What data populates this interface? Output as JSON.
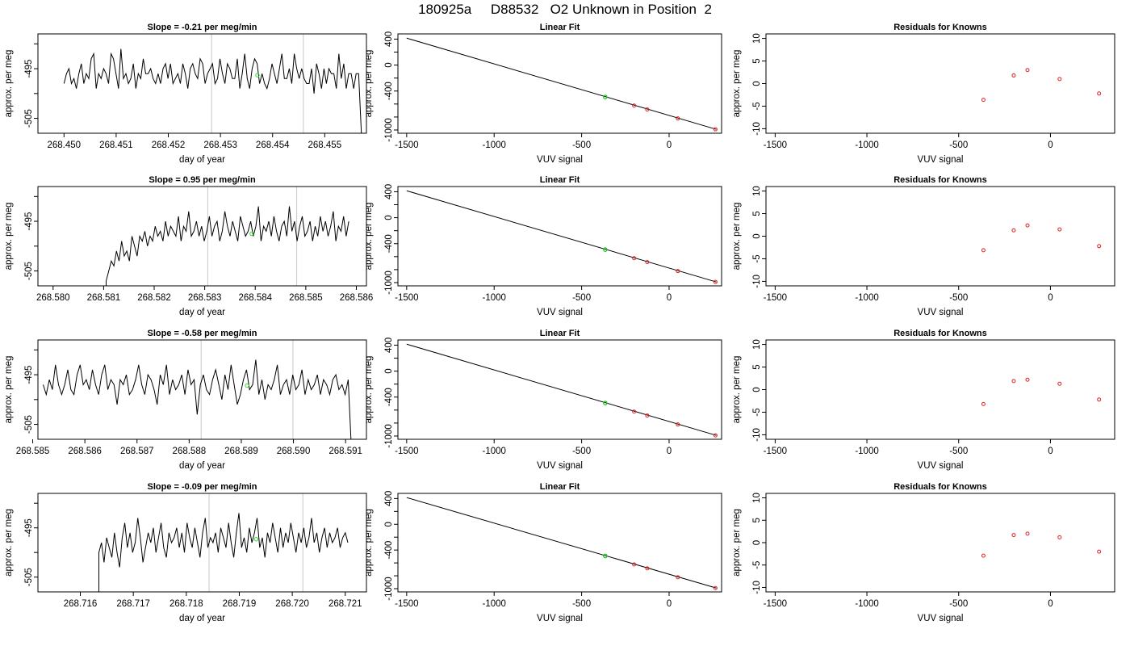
{
  "figure": {
    "title": "180925a     D88532   O2 Unknown in Position  2"
  },
  "chart_data": [
    {
      "panel": "timeseries",
      "row": 1,
      "type": "line",
      "title": "Slope =  -0.21  per meg/min",
      "xlabel": "day of year",
      "ylabel": "approx. per meg",
      "xlim": [
        268.4495,
        268.4558
      ],
      "ylim": [
        -508,
        -488
      ],
      "xticks": [
        268.45,
        268.451,
        268.452,
        268.453,
        268.454,
        268.455
      ],
      "xtick_labels": [
        "268.450",
        "268.451",
        "268.452",
        "268.453",
        "268.454",
        "268.455"
      ],
      "yticks": [
        -505,
        -500,
        -495,
        -490
      ],
      "ytick_labels": [
        "-505",
        "",
        "-495",
        ""
      ],
      "vlines": [
        268.45283,
        268.45459
      ],
      "highlight": {
        "x": 268.45371,
        "y": -496.3
      },
      "x_start": 268.45,
      "x_end": 268.45565,
      "tail_drop": -510,
      "series": [
        {
          "values": [
            -498,
            -496,
            -495,
            -498,
            -497,
            -499,
            -496,
            -494,
            -498,
            -496,
            -497,
            -493,
            -492,
            -499,
            -496,
            -497,
            -495,
            -496,
            -498,
            -492,
            -493,
            -496,
            -499,
            -491,
            -497,
            -496,
            -498,
            -497,
            -494,
            -499,
            -496,
            -497,
            -493,
            -496,
            -496,
            -495,
            -497,
            -498,
            -496,
            -498,
            -495,
            -494,
            -497,
            -494,
            -498,
            -497,
            -496,
            -498,
            -494,
            -496,
            -499,
            -495,
            -494,
            -496,
            -497,
            -493,
            -494,
            -498,
            -496,
            -495,
            -494,
            -498,
            -497,
            -493,
            -496,
            -498,
            -494,
            -495,
            -497,
            -497,
            -493,
            -499,
            -496,
            -492,
            -497,
            -499,
            -495,
            -493,
            -494,
            -498,
            -496,
            -498,
            -499,
            -497,
            -494,
            -496,
            -498,
            -495,
            -492,
            -497,
            -497,
            -495,
            -498,
            -492,
            -495,
            -497,
            -495,
            -497,
            -498,
            -498,
            -495,
            -500,
            -494,
            -496,
            -499,
            -495,
            -498,
            -495,
            -496,
            -496,
            -499,
            -492,
            -497,
            -494,
            -499,
            -496,
            -496,
            -499,
            -496,
            -496
          ]
        }
      ]
    },
    {
      "panel": "fit",
      "row": 1,
      "type": "scatter",
      "title": "Linear Fit",
      "xlabel": "VUV signal",
      "ylabel": "approx. per meg",
      "xlim": [
        -1550,
        300
      ],
      "ylim": [
        -1050,
        480
      ],
      "xticks": [
        -1500,
        -1000,
        -500,
        0
      ],
      "yticks": [
        400,
        200,
        0,
        -200,
        -400,
        -600,
        -800,
        -1000
      ],
      "ytick_labels": [
        "400",
        "",
        "0",
        "",
        "-400",
        "",
        "",
        "-1000"
      ],
      "line": {
        "x": [
          -1500,
          270
        ],
        "y": [
          415,
          -990
        ]
      },
      "knowns": {
        "x": [
          -200,
          -125,
          50,
          265
        ],
        "y": [
          -624,
          -684,
          -822,
          -990
        ]
      },
      "unknown": {
        "x": [
          -365
        ],
        "y": [
          -492
        ]
      }
    },
    {
      "panel": "residuals",
      "row": 1,
      "type": "scatter",
      "title": "Residuals for Knowns",
      "xlabel": "VUV signal",
      "ylabel": "approx. per meg",
      "xlim": [
        -1550,
        350
      ],
      "ylim": [
        -11,
        11
      ],
      "xticks": [
        -1500,
        -1000,
        -500,
        0
      ],
      "yticks": [
        10,
        5,
        0,
        -5,
        -10
      ],
      "residuals": {
        "x": [
          -365,
          -200,
          -125,
          50,
          265
        ],
        "y": [
          -3.6,
          1.8,
          3.0,
          1.0,
          -2.2
        ]
      }
    },
    {
      "panel": "timeseries",
      "row": 2,
      "type": "line",
      "title": "Slope =  0.95  per meg/min",
      "xlabel": "day of year",
      "ylabel": "approx. per meg",
      "xlim": [
        268.5797,
        268.5862
      ],
      "ylim": [
        -508,
        -488
      ],
      "xticks": [
        268.58,
        268.581,
        268.582,
        268.583,
        268.584,
        268.585,
        268.586
      ],
      "xtick_labels": [
        "268.580",
        "268.581",
        "268.582",
        "268.583",
        "268.584",
        "268.585",
        "268.586"
      ],
      "yticks": [
        -505,
        -500,
        -495,
        -490
      ],
      "ytick_labels": [
        "-505",
        "",
        "-495",
        ""
      ],
      "vlines": [
        268.58306,
        268.58482
      ],
      "highlight": {
        "x": 268.58393,
        "y": -497.5
      },
      "x_start": 268.58105,
      "x_end": 268.58585,
      "start_rise": -515,
      "series": [
        {
          "values": [
            -507,
            -505,
            -503,
            -504,
            -501,
            -503,
            -499,
            -502,
            -501,
            -503,
            -498,
            -500,
            -502,
            -498,
            -499,
            -497,
            -500,
            -498,
            -499,
            -496,
            -498,
            -497,
            -499,
            -495,
            -498,
            -496,
            -497,
            -498,
            -494,
            -499,
            -496,
            -497,
            -493,
            -498,
            -497,
            -495,
            -498,
            -496,
            -499,
            -497,
            -494,
            -498,
            -496,
            -495,
            -499,
            -497,
            -493,
            -496,
            -498,
            -495,
            -497,
            -499,
            -494,
            -496,
            -498,
            -497,
            -495,
            -498,
            -496,
            -492,
            -499,
            -496,
            -497,
            -495,
            -498,
            -494,
            -497,
            -499,
            -496,
            -495,
            -498,
            -492,
            -497,
            -495,
            -499,
            -496,
            -494,
            -498,
            -497,
            -495,
            -499,
            -496,
            -498,
            -494,
            -497,
            -495,
            -498,
            -496,
            -493,
            -499,
            -496,
            -497,
            -494,
            -498,
            -495
          ]
        }
      ]
    },
    {
      "panel": "fit",
      "row": 2,
      "type": "scatter",
      "title": "Linear Fit",
      "xlabel": "VUV signal",
      "ylabel": "approx. per meg",
      "xlim": [
        -1550,
        300
      ],
      "ylim": [
        -1050,
        480
      ],
      "xticks": [
        -1500,
        -1000,
        -500,
        0
      ],
      "yticks": [
        400,
        200,
        0,
        -200,
        -400,
        -600,
        -800,
        -1000
      ],
      "ytick_labels": [
        "400",
        "",
        "0",
        "",
        "-400",
        "",
        "",
        "-1000"
      ],
      "line": {
        "x": [
          -1500,
          270
        ],
        "y": [
          415,
          -990
        ]
      },
      "knowns": {
        "x": [
          -200,
          -125,
          50,
          265
        ],
        "y": [
          -624,
          -684,
          -822,
          -990
        ]
      },
      "unknown": {
        "x": [
          -365
        ],
        "y": [
          -492
        ]
      }
    },
    {
      "panel": "residuals",
      "row": 2,
      "type": "scatter",
      "title": "Residuals for Knowns",
      "xlabel": "VUV signal",
      "ylabel": "approx. per meg",
      "xlim": [
        -1550,
        350
      ],
      "ylim": [
        -11,
        11
      ],
      "xticks": [
        -1500,
        -1000,
        -500,
        0
      ],
      "yticks": [
        10,
        5,
        0,
        -5,
        -10
      ],
      "residuals": {
        "x": [
          -365,
          -200,
          -125,
          50,
          265
        ],
        "y": [
          -3.1,
          1.3,
          2.4,
          1.5,
          -2.2
        ]
      }
    },
    {
      "panel": "timeseries",
      "row": 3,
      "type": "line",
      "title": "Slope =  -0.58  per meg/min",
      "xlabel": "day of year",
      "ylabel": "approx. per meg",
      "xlim": [
        268.5851,
        268.5914
      ],
      "ylim": [
        -508,
        -488
      ],
      "xticks": [
        268.585,
        268.586,
        268.587,
        268.588,
        268.589,
        268.59,
        268.591
      ],
      "xtick_labels": [
        "268.585",
        "268.586",
        "268.587",
        "268.588",
        "268.589",
        "268.590",
        "268.591"
      ],
      "yticks": [
        -505,
        -500,
        -495,
        -490
      ],
      "ytick_labels": [
        "-505",
        "",
        "-495",
        ""
      ],
      "vlines": [
        268.58823,
        268.58999
      ],
      "highlight": {
        "x": 268.58911,
        "y": -497.2
      },
      "x_start": 268.5852,
      "x_end": 268.59105,
      "tail_drop": -510,
      "series": [
        {
          "values": [
            -497,
            -499,
            -496,
            -498,
            -493,
            -497,
            -499,
            -497,
            -494,
            -498,
            -499,
            -495,
            -493,
            -497,
            -496,
            -498,
            -494,
            -497,
            -499,
            -495,
            -493,
            -498,
            -496,
            -497,
            -501,
            -496,
            -497,
            -495,
            -499,
            -498,
            -496,
            -493,
            -497,
            -499,
            -495,
            -496,
            -498,
            -501,
            -495,
            -497,
            -493,
            -499,
            -496,
            -498,
            -497,
            -495,
            -499,
            -494,
            -497,
            -496,
            -503,
            -497,
            -495,
            -498,
            -499,
            -496,
            -494,
            -497,
            -500,
            -495,
            -498,
            -493,
            -497,
            -501,
            -499,
            -496,
            -494,
            -498,
            -497,
            -492,
            -499,
            -496,
            -500,
            -497,
            -498,
            -496,
            -493,
            -499,
            -497,
            -496,
            -499,
            -495,
            -498,
            -497,
            -494,
            -499,
            -496,
            -498,
            -497,
            -495,
            -499,
            -496,
            -497,
            -499,
            -496,
            -495,
            -498,
            -497,
            -499,
            -496
          ]
        }
      ]
    },
    {
      "panel": "fit",
      "row": 3,
      "type": "scatter",
      "title": "Linear Fit",
      "xlabel": "VUV signal",
      "ylabel": "approx. per meg",
      "xlim": [
        -1550,
        300
      ],
      "ylim": [
        -1050,
        480
      ],
      "xticks": [
        -1500,
        -1000,
        -500,
        0
      ],
      "yticks": [
        400,
        200,
        0,
        -200,
        -400,
        -600,
        -800,
        -1000
      ],
      "ytick_labels": [
        "400",
        "",
        "0",
        "",
        "-400",
        "",
        "",
        "-1000"
      ],
      "line": {
        "x": [
          -1500,
          270
        ],
        "y": [
          415,
          -990
        ]
      },
      "knowns": {
        "x": [
          -200,
          -125,
          50,
          265
        ],
        "y": [
          -624,
          -684,
          -822,
          -990
        ]
      },
      "unknown": {
        "x": [
          -365
        ],
        "y": [
          -492
        ]
      }
    },
    {
      "panel": "residuals",
      "row": 3,
      "type": "scatter",
      "title": "Residuals for Knowns",
      "xlabel": "VUV signal",
      "ylabel": "approx. per meg",
      "xlim": [
        -1550,
        350
      ],
      "ylim": [
        -11,
        11
      ],
      "xticks": [
        -1500,
        -1000,
        -500,
        0
      ],
      "yticks": [
        10,
        5,
        0,
        -5,
        -10
      ],
      "residuals": {
        "x": [
          -365,
          -200,
          -125,
          50,
          265
        ],
        "y": [
          -3.2,
          1.9,
          2.2,
          1.3,
          -2.2
        ]
      }
    },
    {
      "panel": "timeseries",
      "row": 4,
      "type": "line",
      "title": "Slope =  -0.09  per meg/min",
      "xlabel": "day of year",
      "ylabel": "approx. per meg",
      "xlim": [
        268.7152,
        268.7214
      ],
      "ylim": [
        -508,
        -488
      ],
      "xticks": [
        268.716,
        268.717,
        268.718,
        268.719,
        268.72,
        268.721
      ],
      "xtick_labels": [
        "268.716",
        "268.717",
        "268.718",
        "268.719",
        "268.720",
        "268.721"
      ],
      "yticks": [
        -505,
        -500,
        -495,
        -490
      ],
      "ytick_labels": [
        "-505",
        "",
        "-495",
        ""
      ],
      "vlines": [
        268.71843,
        268.7202
      ],
      "highlight": {
        "x": 268.71932,
        "y": -497.3
      },
      "x_start": 268.71635,
      "x_end": 268.72105,
      "start_rise": -515,
      "series": [
        {
          "values": [
            -500,
            -498,
            -502,
            -497,
            -499,
            -501,
            -496,
            -500,
            -503,
            -497,
            -494,
            -499,
            -496,
            -500,
            -498,
            -493,
            -497,
            -502,
            -499,
            -496,
            -498,
            -495,
            -500,
            -497,
            -494,
            -499,
            -501,
            -496,
            -498,
            -497,
            -495,
            -499,
            -496,
            -500,
            -494,
            -497,
            -499,
            -495,
            -498,
            -501,
            -496,
            -493,
            -499,
            -497,
            -498,
            -496,
            -500,
            -495,
            -497,
            -499,
            -494,
            -498,
            -501,
            -496,
            -492,
            -499,
            -497,
            -500,
            -495,
            -498,
            -496,
            -493,
            -499,
            -497,
            -501,
            -496,
            -498,
            -494,
            -497,
            -500,
            -495,
            -499,
            -496,
            -498,
            -494,
            -497,
            -500,
            -496,
            -498,
            -495,
            -499,
            -497,
            -493,
            -498,
            -496,
            -500,
            -497,
            -495,
            -499,
            -496,
            -498,
            -497,
            -495,
            -499,
            -497,
            -496,
            -498
          ]
        }
      ]
    },
    {
      "panel": "fit",
      "row": 4,
      "type": "scatter",
      "title": "Linear Fit",
      "xlabel": "VUV signal",
      "ylabel": "approx. per meg",
      "xlim": [
        -1550,
        300
      ],
      "ylim": [
        -1050,
        480
      ],
      "xticks": [
        -1500,
        -1000,
        -500,
        0
      ],
      "yticks": [
        400,
        200,
        0,
        -200,
        -400,
        -600,
        -800,
        -1000
      ],
      "ytick_labels": [
        "400",
        "",
        "0",
        "",
        "-400",
        "",
        "",
        "-1000"
      ],
      "line": {
        "x": [
          -1500,
          270
        ],
        "y": [
          415,
          -990
        ]
      },
      "knowns": {
        "x": [
          -200,
          -125,
          50,
          265
        ],
        "y": [
          -624,
          -684,
          -822,
          -990
        ]
      },
      "unknown": {
        "x": [
          -365
        ],
        "y": [
          -492
        ]
      }
    },
    {
      "panel": "residuals",
      "row": 4,
      "type": "scatter",
      "title": "Residuals for Knowns",
      "xlabel": "VUV signal",
      "ylabel": "approx. per meg",
      "xlim": [
        -1550,
        350
      ],
      "ylim": [
        -11,
        11
      ],
      "xticks": [
        -1500,
        -1000,
        -500,
        0
      ],
      "yticks": [
        10,
        5,
        0,
        -5,
        -10
      ],
      "residuals": {
        "x": [
          -365,
          -200,
          -125,
          50,
          265
        ],
        "y": [
          -2.9,
          1.7,
          2.0,
          1.2,
          -2.0
        ]
      }
    }
  ]
}
